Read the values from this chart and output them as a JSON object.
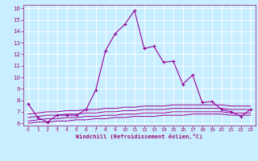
{
  "x": [
    0,
    1,
    2,
    3,
    4,
    5,
    6,
    7,
    8,
    9,
    10,
    11,
    12,
    13,
    14,
    15,
    16,
    17,
    18,
    19,
    20,
    21,
    22,
    23
  ],
  "line1": [
    7.7,
    6.5,
    6.1,
    6.7,
    6.7,
    6.7,
    7.2,
    8.9,
    12.3,
    13.8,
    14.6,
    15.8,
    12.5,
    12.7,
    11.3,
    11.4,
    9.4,
    10.2,
    7.8,
    7.9,
    7.2,
    7.0,
    6.6,
    7.2
  ],
  "line2": [
    6.8,
    6.9,
    7.0,
    7.0,
    7.1,
    7.1,
    7.2,
    7.2,
    7.3,
    7.3,
    7.4,
    7.4,
    7.5,
    7.5,
    7.5,
    7.6,
    7.6,
    7.6,
    7.6,
    7.6,
    7.6,
    7.5,
    7.5,
    7.5
  ],
  "line3": [
    6.5,
    6.6,
    6.7,
    6.7,
    6.8,
    6.8,
    6.9,
    6.9,
    7.0,
    7.0,
    7.1,
    7.1,
    7.2,
    7.2,
    7.2,
    7.3,
    7.3,
    7.3,
    7.3,
    7.3,
    7.3,
    7.2,
    7.2,
    7.2
  ],
  "line4": [
    6.2,
    6.3,
    6.4,
    6.4,
    6.5,
    6.5,
    6.6,
    6.6,
    6.7,
    6.7,
    6.8,
    6.8,
    6.9,
    6.9,
    6.9,
    7.0,
    7.0,
    7.0,
    7.0,
    7.0,
    7.0,
    6.9,
    6.9,
    6.9
  ],
  "line5": [
    6.0,
    6.1,
    6.1,
    6.2,
    6.2,
    6.3,
    6.3,
    6.4,
    6.4,
    6.5,
    6.5,
    6.6,
    6.6,
    6.6,
    6.7,
    6.7,
    6.7,
    6.8,
    6.8,
    6.8,
    6.8,
    6.7,
    6.7,
    6.7
  ],
  "line_color": "#990099",
  "bg_color": "#c8eeff",
  "grid_color": "#ffffff",
  "xlabel": "Windchill (Refroidissement éolien,°C)",
  "xlabel_color": "#9b0f7a",
  "tick_color": "#9b0f7a",
  "ylim": [
    5.8,
    16.3
  ],
  "xlim": [
    -0.5,
    23.5
  ],
  "yticks": [
    6,
    7,
    8,
    9,
    10,
    11,
    12,
    13,
    14,
    15,
    16
  ],
  "xticks": [
    0,
    1,
    2,
    3,
    4,
    5,
    6,
    7,
    8,
    9,
    10,
    11,
    12,
    13,
    14,
    15,
    16,
    17,
    18,
    19,
    20,
    21,
    22,
    23
  ]
}
